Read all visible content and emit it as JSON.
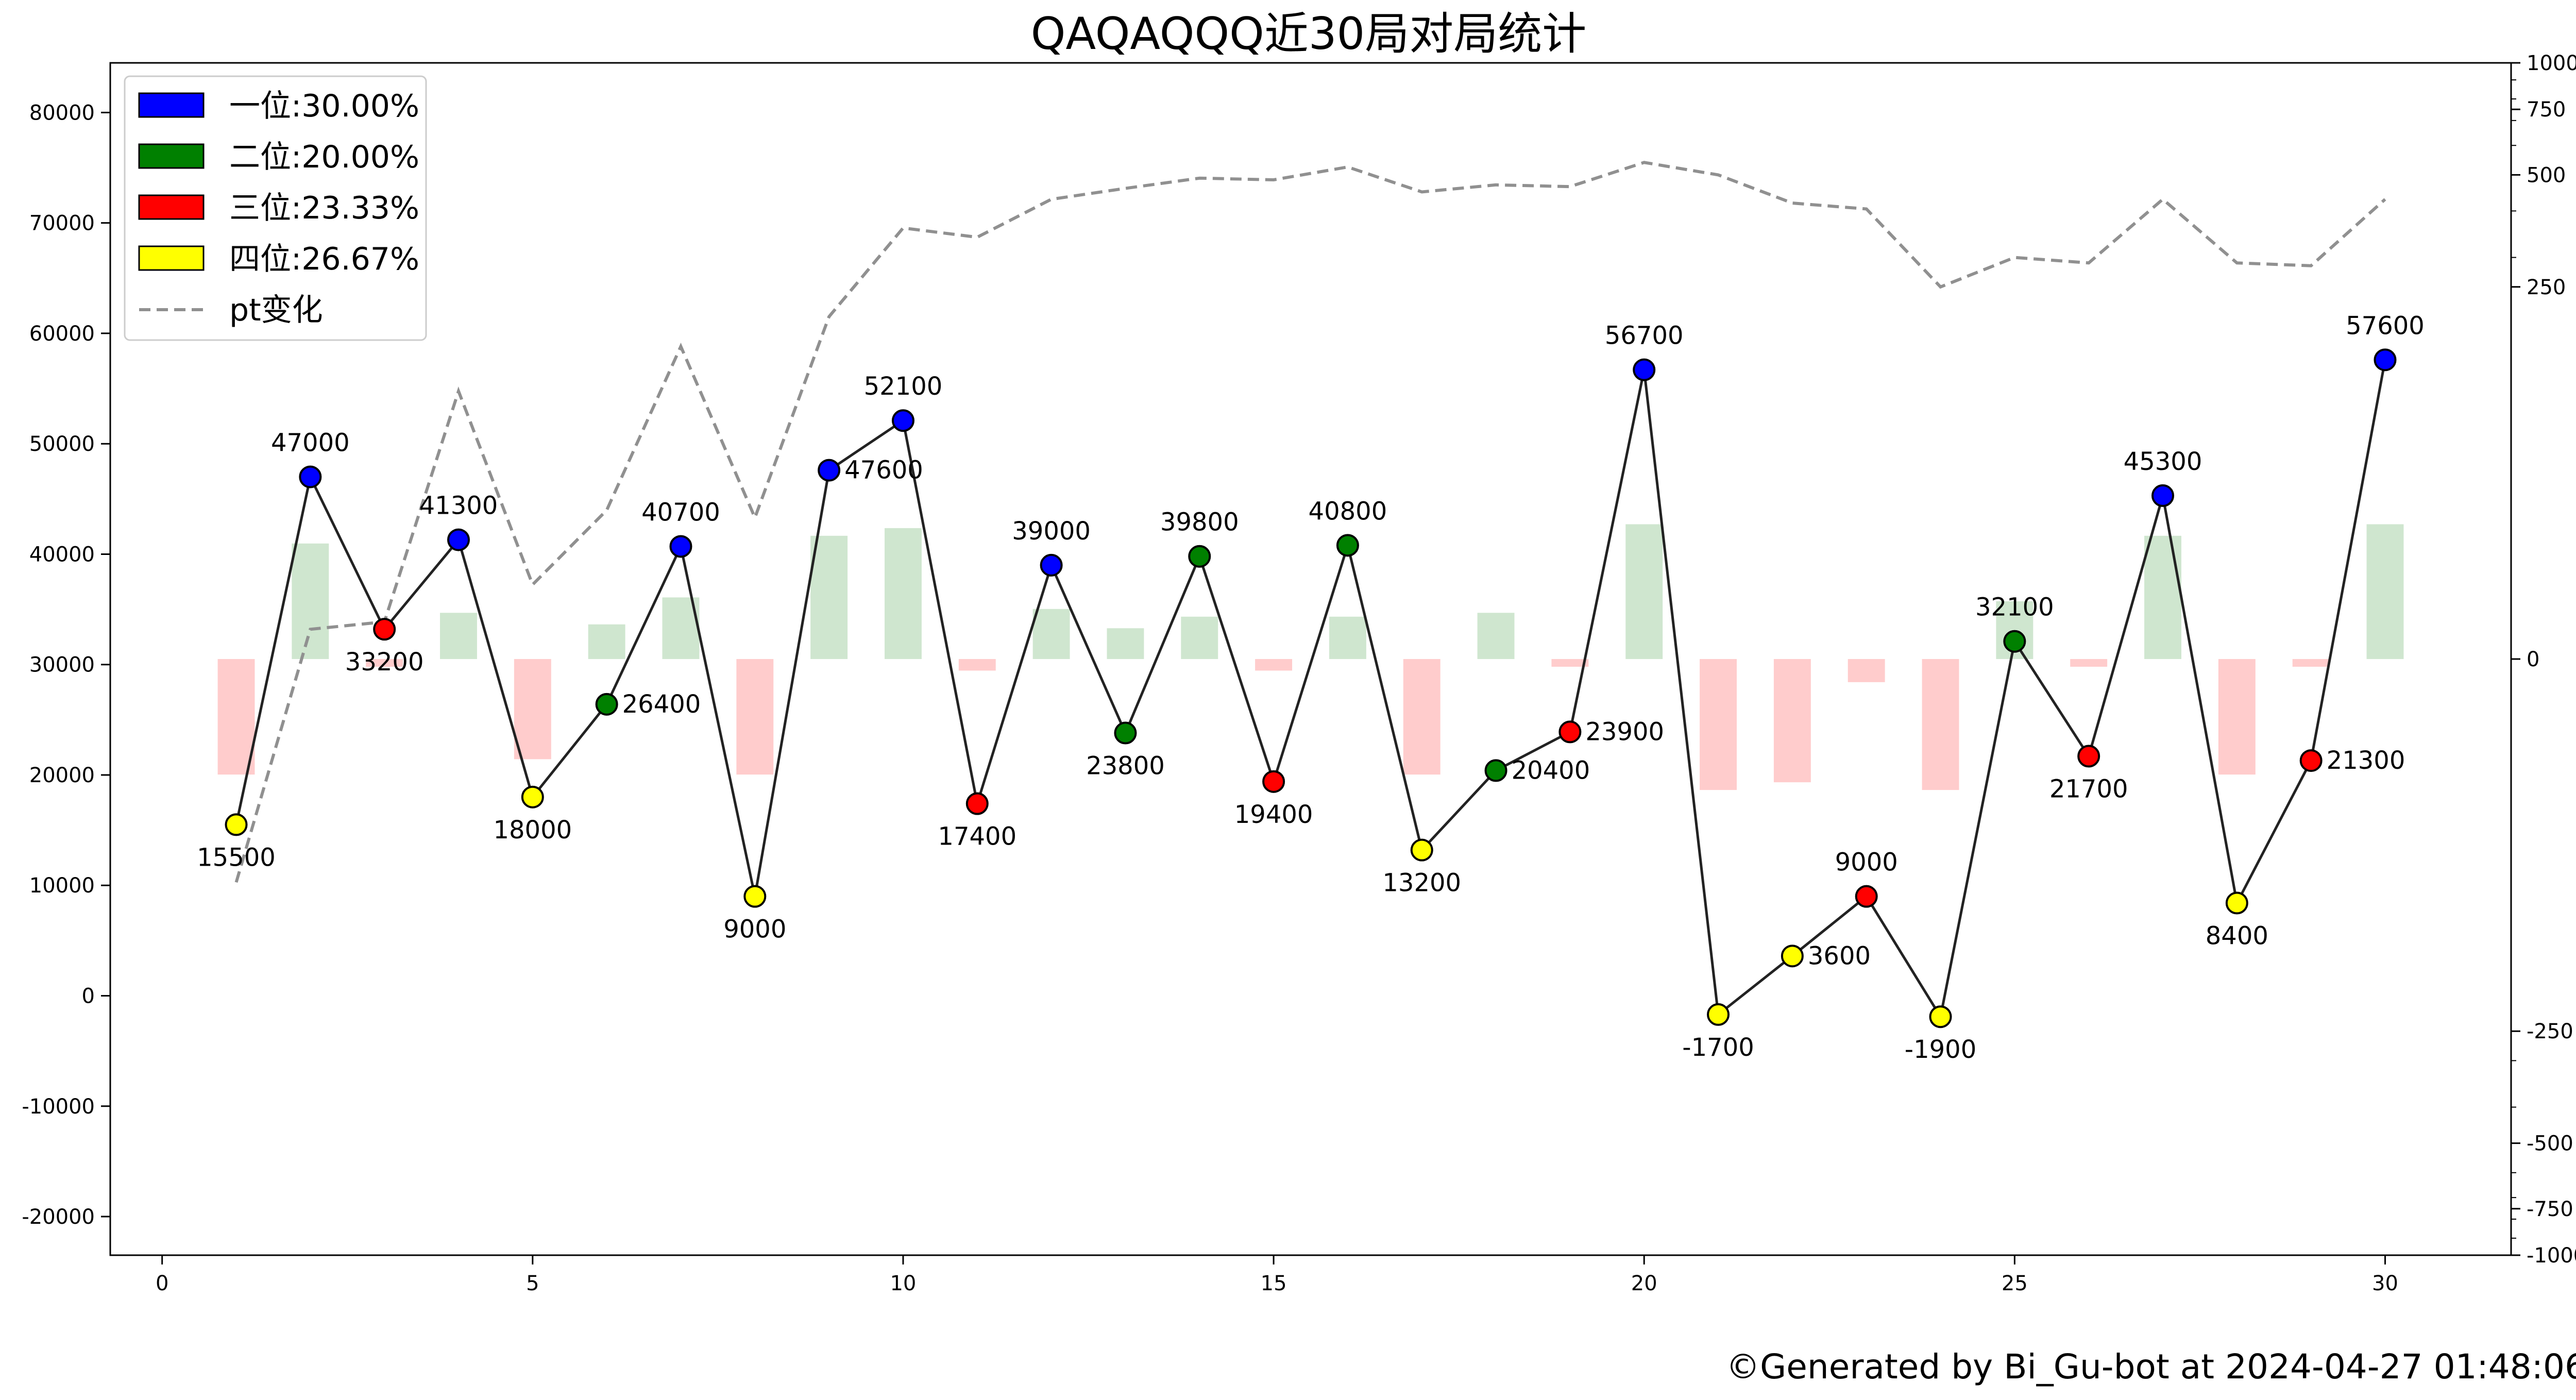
{
  "chart_data": {
    "type": "line",
    "title": "QAQAQQQ近30局对局统计",
    "x": [
      1,
      2,
      3,
      4,
      5,
      6,
      7,
      8,
      9,
      10,
      11,
      12,
      13,
      14,
      15,
      16,
      17,
      18,
      19,
      20,
      21,
      22,
      23,
      24,
      25,
      26,
      27,
      28,
      29,
      30
    ],
    "scores": [
      15500,
      47000,
      33200,
      41300,
      18000,
      26400,
      40700,
      9000,
      47600,
      52100,
      17400,
      39000,
      23800,
      39800,
      19400,
      40800,
      13200,
      20400,
      23900,
      56700,
      -1700,
      3600,
      9000,
      -1900,
      32100,
      21700,
      45300,
      8400,
      21300,
      57600
    ],
    "ranks": [
      4,
      1,
      3,
      1,
      4,
      2,
      1,
      4,
      1,
      1,
      3,
      1,
      2,
      2,
      3,
      2,
      4,
      2,
      3,
      1,
      4,
      4,
      3,
      4,
      2,
      3,
      1,
      4,
      3,
      1
    ],
    "pt_change": [
      -150,
      150,
      -10,
      60,
      -130,
      45,
      80,
      -150,
      160,
      170,
      -15,
      65,
      40,
      55,
      -15,
      55,
      -150,
      60,
      -10,
      175,
      -170,
      -160,
      -30,
      -170,
      75,
      -10,
      160,
      -150,
      -10,
      175
    ],
    "pt_total": [
      -150,
      20,
      25,
      180,
      50,
      100,
      210,
      95,
      230,
      360,
      340,
      430,
      460,
      490,
      485,
      525,
      450,
      470,
      465,
      540,
      500,
      420,
      405,
      250,
      300,
      290,
      430,
      290,
      285,
      430
    ],
    "x_ticks": [
      0,
      5,
      10,
      15,
      20,
      25,
      30
    ],
    "xlim": [
      -0.7,
      31.7
    ],
    "y_left_ticks": [
      -20000,
      -10000,
      0,
      10000,
      20000,
      30000,
      40000,
      50000,
      60000,
      70000,
      80000
    ],
    "ylim_left": [
      -23500,
      84500
    ],
    "y_right_ticks": [
      -1000,
      -750,
      -500,
      -250,
      0,
      250,
      500,
      750,
      1000
    ],
    "ylim_right": [
      -1000,
      1000
    ],
    "y_right_scale": "symlog",
    "bar_baseline_score": 30500,
    "legend_position": "top-left",
    "legend": [
      {
        "label": "一位:30.00%",
        "color": "#0000ff",
        "kind": "patch"
      },
      {
        "label": "二位:20.00%",
        "color": "#008000",
        "kind": "patch"
      },
      {
        "label": "三位:23.33%",
        "color": "#ff0000",
        "kind": "patch"
      },
      {
        "label": "四位:26.67%",
        "color": "#ffff00",
        "kind": "patch"
      },
      {
        "label": "pt变化",
        "color": "#909090",
        "kind": "dashed-line"
      }
    ],
    "colors": {
      "rank1": "#0000ff",
      "rank2": "#008000",
      "rank3": "#ff0000",
      "rank4": "#ffff00",
      "bar_positive": "#cfe6cf",
      "bar_negative": "#ffcccc",
      "score_line": "#222222",
      "pt_line": "#909090"
    },
    "grid": false
  },
  "footer": "©Generated by Bi_Gu-bot at 2024-04-27 01:48:06"
}
